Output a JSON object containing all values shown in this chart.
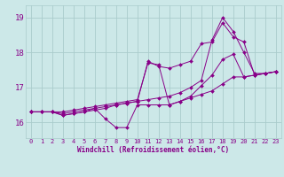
{
  "bg_color": "#cce8e8",
  "line_color": "#880088",
  "grid_color": "#aacccc",
  "xlabel": "Windchill (Refroidissement éolien,°C)",
  "ylabel_ticks": [
    16,
    17,
    18,
    19
  ],
  "xlim": [
    -0.5,
    23.5
  ],
  "ylim": [
    15.55,
    19.35
  ],
  "xticks": [
    0,
    1,
    2,
    3,
    4,
    5,
    6,
    7,
    8,
    9,
    10,
    11,
    12,
    13,
    14,
    15,
    16,
    17,
    18,
    19,
    20,
    21,
    22,
    23
  ],
  "series": [
    {
      "x": [
        0,
        1,
        2,
        3,
        4,
        5,
        6,
        7,
        8,
        9,
        10,
        11,
        12,
        13,
        14,
        15,
        16,
        17,
        18,
        19,
        20,
        21,
        22,
        23
      ],
      "y": [
        16.3,
        16.3,
        16.3,
        16.25,
        16.3,
        16.35,
        16.4,
        16.1,
        15.85,
        15.85,
        16.5,
        16.5,
        16.5,
        16.5,
        16.6,
        16.7,
        16.8,
        16.9,
        17.1,
        17.3,
        17.3,
        17.35,
        17.4,
        17.45
      ]
    },
    {
      "x": [
        0,
        1,
        2,
        3,
        4,
        5,
        6,
        7,
        8,
        9,
        10,
        11,
        12,
        13,
        14,
        15,
        16,
        17,
        18,
        19,
        20,
        21,
        22,
        23
      ],
      "y": [
        16.3,
        16.3,
        16.3,
        16.3,
        16.35,
        16.4,
        16.45,
        16.5,
        16.55,
        16.6,
        16.65,
        17.7,
        17.65,
        16.5,
        16.6,
        16.75,
        17.05,
        17.35,
        17.8,
        17.95,
        17.3,
        17.35,
        17.4,
        17.45
      ]
    },
    {
      "x": [
        0,
        1,
        2,
        3,
        4,
        5,
        6,
        7,
        8,
        9,
        10,
        11,
        12,
        13,
        14,
        15,
        16,
        17,
        18,
        19,
        20,
        21,
        22,
        23
      ],
      "y": [
        16.3,
        16.3,
        16.3,
        16.2,
        16.25,
        16.3,
        16.4,
        16.45,
        16.5,
        16.55,
        16.6,
        17.75,
        17.6,
        17.55,
        17.65,
        17.75,
        18.25,
        18.3,
        18.85,
        18.45,
        18.3,
        17.35,
        17.4,
        17.45
      ]
    },
    {
      "x": [
        0,
        1,
        2,
        3,
        4,
        5,
        6,
        7,
        8,
        9,
        10,
        11,
        12,
        13,
        14,
        15,
        16,
        17,
        18,
        19,
        20,
        21,
        22,
        23
      ],
      "y": [
        16.3,
        16.3,
        16.3,
        16.2,
        16.25,
        16.3,
        16.35,
        16.4,
        16.5,
        16.55,
        16.6,
        16.65,
        16.7,
        16.75,
        16.85,
        17.0,
        17.2,
        18.35,
        19.0,
        18.6,
        18.0,
        17.4,
        17.4,
        17.45
      ]
    }
  ]
}
